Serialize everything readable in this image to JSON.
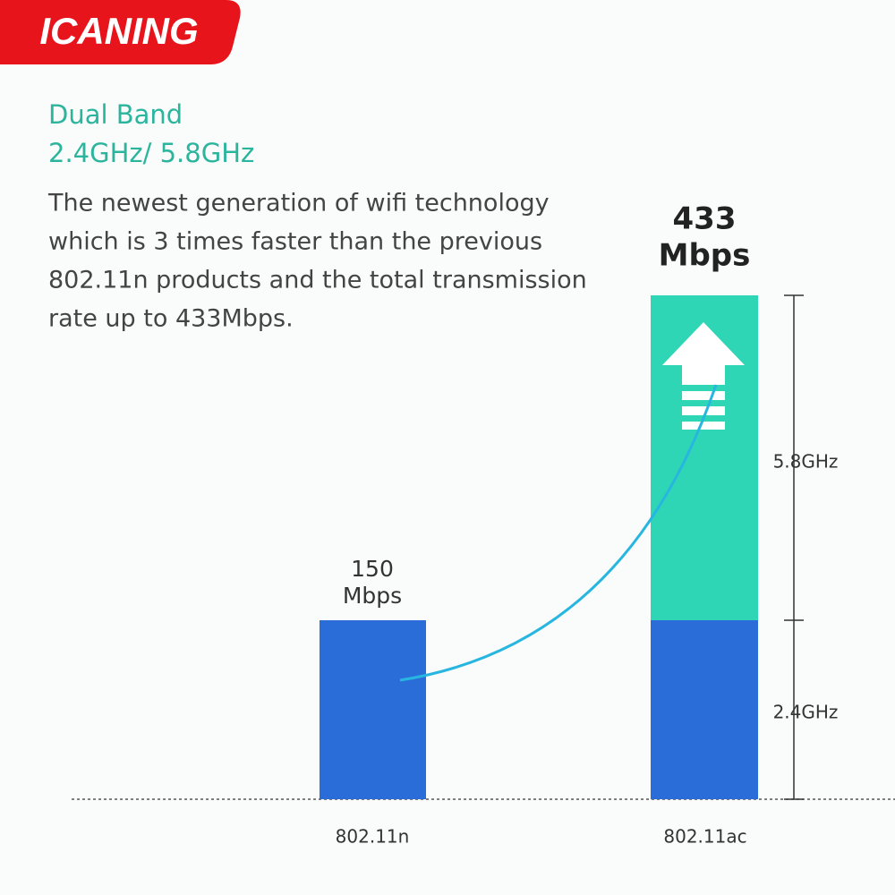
{
  "logo": "ICANING",
  "header": {
    "title": "Dual Band",
    "subtitle": "2.4GHz/ 5.8GHz"
  },
  "description": [
    "The newest generation of wifi technology",
    "which is 3 times faster than the previous",
    "802.11n products and the total transmission",
    "rate up to 433Mbps."
  ],
  "bars": [
    {
      "label": "802.11n",
      "speed": "150",
      "unit": "Mbps"
    },
    {
      "label": "802.11ac",
      "speed": "433",
      "unit": "Mbps",
      "segments": [
        "5.8GHz",
        "2.4GHz"
      ]
    }
  ]
}
